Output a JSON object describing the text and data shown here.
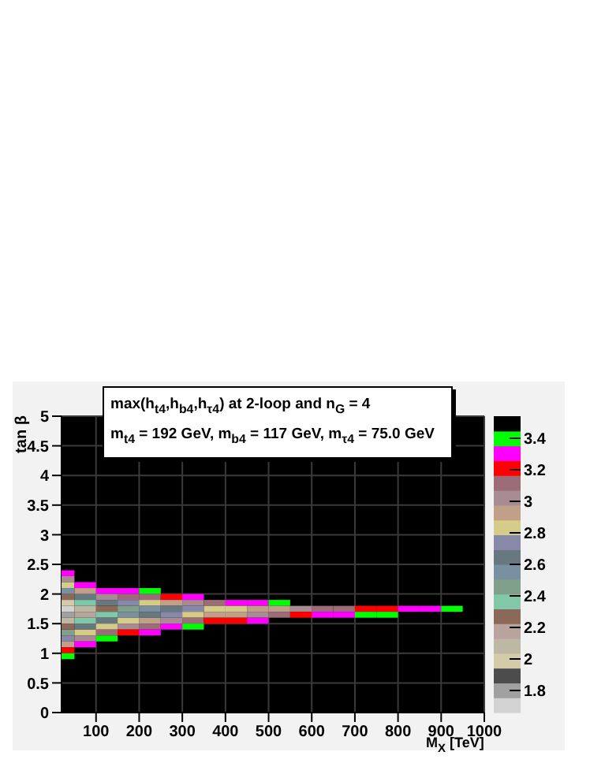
{
  "chart_data": {
    "type": "heatmap",
    "title": "max(h$_{t4}$,h$_{b4}$,h$_{τ4}$) at 2-loop  and  n$_{G}$ = 4",
    "subtitle": "m$_{t4}$ = 192 GeV, m$_{b4}$ = 117 GeV, m$_{τ4}$ = 75.0 GeV",
    "xlabel": "M$_{X}$ [TeV]",
    "ylabel": "tan β",
    "x": [
      25,
      75,
      125,
      175,
      225,
      275,
      325,
      375,
      425,
      475,
      525,
      575,
      625,
      675,
      725,
      775,
      825,
      875,
      925
    ],
    "y": [
      2.35,
      2.25,
      2.15,
      2.05,
      1.95,
      1.85,
      1.75,
      1.65,
      1.55,
      1.45,
      1.35,
      1.25,
      1.15,
      1.05,
      0.95
    ],
    "cells": [
      [
        3.31,
        null,
        null,
        null,
        null,
        null,
        null,
        null,
        null,
        null,
        null,
        null,
        null,
        null,
        null,
        null,
        null,
        null,
        null
      ],
      [
        3.02,
        null,
        null,
        null,
        null,
        null,
        null,
        null,
        null,
        null,
        null,
        null,
        null,
        null,
        null,
        null,
        null,
        null,
        null
      ],
      [
        2.84,
        3.31,
        null,
        null,
        null,
        null,
        null,
        null,
        null,
        null,
        null,
        null,
        null,
        null,
        null,
        null,
        null,
        null,
        null
      ],
      [
        2.55,
        2.93,
        3.31,
        3.31,
        3.4,
        null,
        null,
        null,
        null,
        null,
        null,
        null,
        null,
        null,
        null,
        null,
        null,
        null,
        null
      ],
      [
        2.27,
        2.65,
        3.02,
        3.12,
        3.12,
        3.21,
        3.31,
        null,
        null,
        null,
        null,
        null,
        null,
        null,
        null,
        null,
        null,
        null,
        null
      ],
      [
        1.99,
        2.37,
        2.65,
        2.74,
        2.84,
        2.93,
        3.02,
        3.12,
        3.31,
        3.31,
        3.4,
        null,
        null,
        null,
        null,
        null,
        null,
        null,
        null
      ],
      [
        1.71,
        2.08,
        2.27,
        2.46,
        2.55,
        2.65,
        2.74,
        2.84,
        2.84,
        2.93,
        2.93,
        3.02,
        3.12,
        3.12,
        3.21,
        3.21,
        3.31,
        3.31,
        3.4
      ],
      [
        1.8,
        2.18,
        2.37,
        2.55,
        2.65,
        2.74,
        2.84,
        2.93,
        2.93,
        3.02,
        3.12,
        3.21,
        3.31,
        3.31,
        3.4,
        3.4,
        null,
        null,
        null
      ],
      [
        2.08,
        2.37,
        2.65,
        2.84,
        2.93,
        3.02,
        3.12,
        3.21,
        3.21,
        3.31,
        null,
        null,
        null,
        null,
        null,
        null,
        null,
        null,
        null
      ],
      [
        2.27,
        2.65,
        2.84,
        3.02,
        3.12,
        3.31,
        3.4,
        null,
        null,
        null,
        null,
        null,
        null,
        null,
        null,
        null,
        null,
        null,
        null
      ],
      [
        2.46,
        2.84,
        3.12,
        3.21,
        3.31,
        null,
        null,
        null,
        null,
        null,
        null,
        null,
        null,
        null,
        null,
        null,
        null,
        null,
        null
      ],
      [
        2.74,
        3.02,
        3.4,
        null,
        null,
        null,
        null,
        null,
        null,
        null,
        null,
        null,
        null,
        null,
        null,
        null,
        null,
        null,
        null
      ],
      [
        2.93,
        3.31,
        null,
        null,
        null,
        null,
        null,
        null,
        null,
        null,
        null,
        null,
        null,
        null,
        null,
        null,
        null,
        null,
        null
      ],
      [
        3.21,
        null,
        null,
        null,
        null,
        null,
        null,
        null,
        null,
        null,
        null,
        null,
        null,
        null,
        null,
        null,
        null,
        null,
        null
      ],
      [
        3.4,
        null,
        null,
        null,
        null,
        null,
        null,
        null,
        null,
        null,
        null,
        null,
        null,
        null,
        null,
        null,
        null,
        null,
        null
      ]
    ],
    "colors": [
      "#d2d2d2",
      "#a0a0a0",
      "#4c4c4c",
      "#d4cca8",
      "#bcb8a4",
      "#b8a49c",
      "#8c6858",
      "#80c8a8",
      "#80a08c",
      "#7890a0",
      "#687880",
      "#8888a8",
      "#d4cc88",
      "#c0a088",
      "#a88c94",
      "#9c6c78",
      "#ff0000",
      "#ff00ff",
      "#00ff00",
      "#000000"
    ],
    "clim": [
      1.66,
      3.54
    ],
    "cticks": [
      1.8,
      2,
      2.2,
      2.4,
      2.6,
      2.8,
      3,
      3.2,
      3.4
    ],
    "xlim": [
      20,
      1000
    ],
    "xticks": [
      100,
      200,
      300,
      400,
      500,
      600,
      700,
      800,
      900,
      1000
    ],
    "ylim": [
      0,
      5
    ],
    "yticks": [
      0,
      0.5,
      1,
      1.5,
      2,
      2.5,
      3,
      3.5,
      4,
      4.5,
      5
    ],
    "grid": true
  }
}
